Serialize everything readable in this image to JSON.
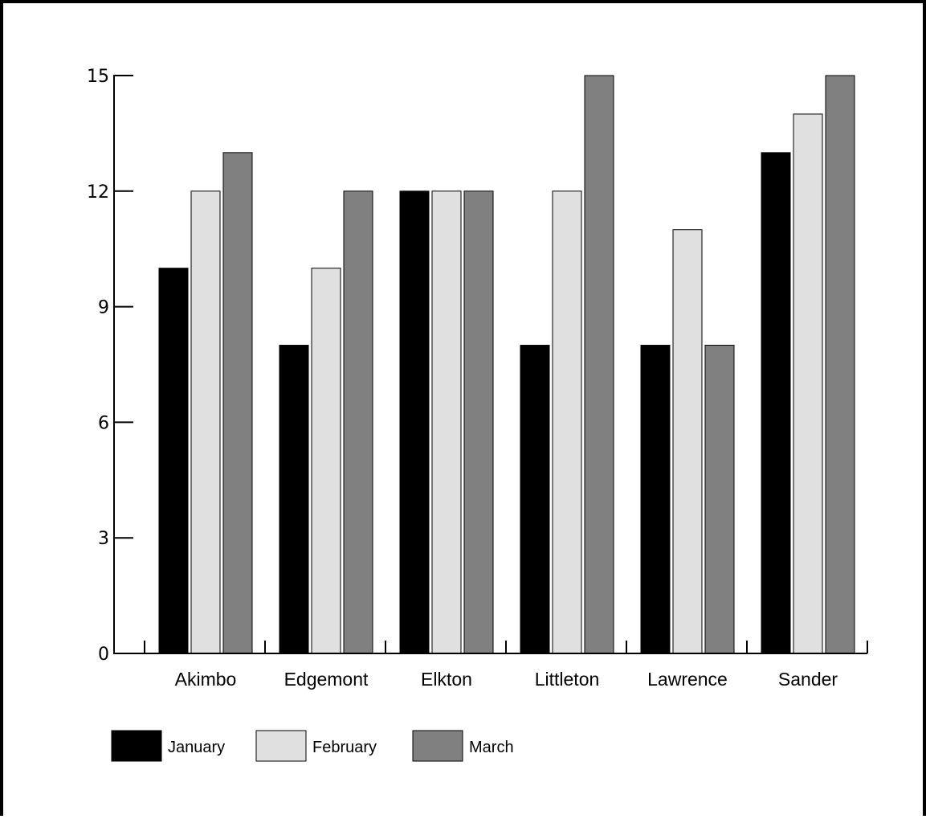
{
  "chart_data": {
    "type": "bar",
    "categories": [
      "Akimbo",
      "Edgemont",
      "Elkton",
      "Littleton",
      "Lawrence",
      "Sander"
    ],
    "series": [
      {
        "name": "January",
        "values": [
          10,
          8,
          12,
          8,
          8,
          13
        ],
        "color": "#000000"
      },
      {
        "name": "February",
        "values": [
          12,
          10,
          12,
          12,
          11,
          14
        ],
        "color": "#e0e0e0"
      },
      {
        "name": "March",
        "values": [
          13,
          12,
          12,
          15,
          8,
          15
        ],
        "color": "#808080"
      }
    ],
    "yticks": [
      "0",
      "3",
      "6",
      "9",
      "12",
      "15"
    ],
    "ylim": [
      0,
      15
    ],
    "grid": false,
    "legend_position": "bottom-left"
  }
}
